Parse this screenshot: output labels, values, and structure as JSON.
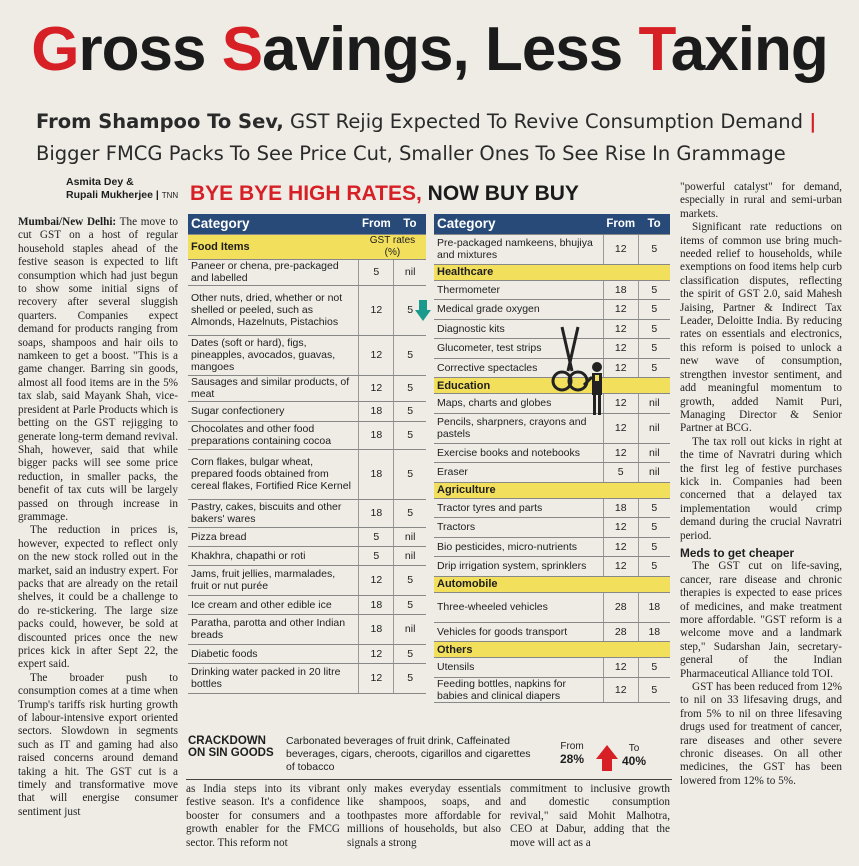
{
  "headline": {
    "part1": "G",
    "part2": "ross ",
    "part3": "S",
    "part4": "avings, Less ",
    "part5": "T",
    "part6": "axing"
  },
  "subdeck": {
    "line1_bold": "From Shampoo To Sev,",
    "line1_rest": " GST Rejig Expected To Revive Consumption Demand",
    "bar": "|",
    "line2": "Bigger FMCG Packs To See Price Cut, Smaller Ones To See Rise In Grammage"
  },
  "byline": {
    "authors1": "Asmita Dey &",
    "authors2": "Rupali Mukherjee",
    "agency": "TNN"
  },
  "left_column": {
    "dateline": "Mumbai/New Delhi:",
    "p1": " The move to cut GST on a host of regular household staples ahead of the festive season is expected to lift consumption which had just begun to show some initial signs of recovery after several sluggish quarters. Companies expect demand for products ranging from soaps, shampoos and hair oils to namkeen to get a boost. \"This is a game changer. Barring sin goods, almost all food items are in the 5% tax slab, said Mayank Shah, vice-president at Parle Products which is betting on the GST rejigging to generate long-term demand revival. Shah, however, said that while bigger packs will see some price reduction, in smaller packs, the benefit of tax cuts will be largely passed on through increase in grammage.",
    "p2": "The reduction in prices is, however, expected to reflect only on the new stock rolled out in the market, said an industry expert. For packs that are already on the retail shelves, it could be a challenge to do re-stickering. The large size packs could, however, be sold at discounted prices once the new prices kick in after Sept 22, the expert said.",
    "p3": "The broader push to consumption comes at a time when Trump's tariffs risk hurting growth of labour-intensive export oriented sectors. Slowdown in segments such as IT and gaming had also raised concerns around demand taking a hit. The GST cut is a timely and transformative move that will energise consumer sentiment just"
  },
  "bottom_strip": {
    "c1": "as India steps into its vibrant festive season. It's a confidence booster for consumers and a growth enabler for the FMCG sector. This reform not",
    "c2": "only makes everyday essentials like shampoos, soaps, and toothpastes more affordable for millions of households, but also signals a strong",
    "c3": "commitment to inclusive growth and domestic consumption revival,\" said Mohit Malhotra, CEO at Dabur, adding that the move will act as a"
  },
  "right_column": {
    "p1": "\"powerful catalyst\" for demand, especially in rural and semi-urban markets.",
    "p2": "Significant rate reductions on items of common use bring much-needed relief to households, while exemptions on food items help curb classification disputes, reflecting the spirit of GST 2.0, said Mahesh Jaising, Partner & Indirect Tax Leader, Deloitte India. By reducing rates on essentials and electronics, this reform is poised to unlock a new wave of consumption, strengthen investor sentiment, and add meaningful momentum to growth, added Namit Puri, Managing Director & Senior Partner at BCG.",
    "p3": "The tax roll out kicks in right at the time of Navratri during which the first leg of festive purchases kick in. Companies had been concerned that a delayed tax implementation would crimp demand during the crucial Navratri period.",
    "subhead": "Meds to get cheaper",
    "p4": "The GST cut on life-saving, cancer, rare disease and chronic therapies is expected to ease prices of medicines, and make treatment more affordable. \"GST reform is a welcome move and a landmark step,\" Sudarshan Jain, secretary-general of the Indian Pharmaceutical Alliance told TOI.",
    "p5": "GST has been reduced from 12% to nil on 33 lifesaving drugs, and from 5% to nil on three lifesaving drugs used for treatment of cancer, rare diseases and other severe chronic diseases. On all other medicines, the GST has been lowered from 12% to 5%."
  },
  "graphic": {
    "title_red": "BYE BYE HIGH RATES,",
    "title_black": " NOW BUY BUY",
    "headers": {
      "category": "Category",
      "from": "From",
      "to": "To"
    },
    "unit_note": "GST rates (%)",
    "left_table": {
      "section": "Food Items",
      "rows": [
        {
          "item": "Paneer or chena, pre-packaged and labelled",
          "from": "5",
          "to": "nil"
        },
        {
          "item": "Other nuts, dried, whether or not shelled or peeled, such as Almonds, Hazelnuts, Pistachios",
          "from": "12",
          "to": "5"
        },
        {
          "item": "Dates (soft or hard), figs, pineapples, avocados, guavas, mangoes",
          "from": "12",
          "to": "5"
        },
        {
          "item": "Sausages and similar products, of meat",
          "from": "12",
          "to": "5"
        },
        {
          "item": "Sugar confectionery",
          "from": "18",
          "to": "5"
        },
        {
          "item": "Chocolates and other food preparations containing cocoa",
          "from": "18",
          "to": "5"
        },
        {
          "item": "Corn flakes, bulgar wheat, prepared foods obtained from cereal flakes, Fortified Rice Kernel",
          "from": "18",
          "to": "5"
        },
        {
          "item": "Pastry, cakes, biscuits and other bakers' wares",
          "from": "18",
          "to": "5"
        },
        {
          "item": "Pizza bread",
          "from": "5",
          "to": "nil"
        },
        {
          "item": "Khakhra, chapathi or roti",
          "from": "5",
          "to": "nil"
        },
        {
          "item": "Jams, fruit jellies, marmalades, fruit or nut purée",
          "from": "12",
          "to": "5"
        },
        {
          "item": "Ice cream and other edible ice",
          "from": "18",
          "to": "5"
        },
        {
          "item": "Paratha, parotta and other Indian breads",
          "from": "18",
          "to": "nil"
        },
        {
          "item": "Diabetic foods",
          "from": "12",
          "to": "5"
        },
        {
          "item": "Drinking water packed in 20 litre bottles",
          "from": "12",
          "to": "5"
        }
      ]
    },
    "right_table": {
      "rows_top": [
        {
          "item": "Pre-packaged namkeens, bhujiya and mixtures",
          "from": "12",
          "to": "5"
        }
      ],
      "sections": [
        {
          "name": "Healthcare",
          "rows": [
            {
              "item": "Thermometer",
              "from": "18",
              "to": "5"
            },
            {
              "item": "Medical grade oxygen",
              "from": "12",
              "to": "5"
            },
            {
              "item": "Diagnostic kits",
              "from": "12",
              "to": "5"
            },
            {
              "item": "Glucometer, test strips",
              "from": "12",
              "to": "5"
            },
            {
              "item": "Corrective spectacles",
              "from": "12",
              "to": "5"
            }
          ]
        },
        {
          "name": "Education",
          "rows": [
            {
              "item": "Maps, charts and globes",
              "from": "12",
              "to": "nil"
            },
            {
              "item": "Pencils, sharpners, crayons and pastels",
              "from": "12",
              "to": "nil"
            },
            {
              "item": "Exercise books and notebooks",
              "from": "12",
              "to": "nil"
            },
            {
              "item": "Eraser",
              "from": "5",
              "to": "nil"
            }
          ]
        },
        {
          "name": "Agriculture",
          "rows": [
            {
              "item": "Tractor tyres and parts",
              "from": "18",
              "to": "5"
            },
            {
              "item": "Tractors",
              "from": "12",
              "to": "5"
            },
            {
              "item": "Bio pesticides, micro-nutrients",
              "from": "12",
              "to": "5"
            },
            {
              "item": "Drip irrigation system, sprinklers",
              "from": "12",
              "to": "5"
            }
          ]
        },
        {
          "name": "Automobile",
          "rows": [
            {
              "item": "Three-wheeled vehicles",
              "from": "28",
              "to": "18"
            },
            {
              "item": "Vehicles for goods transport",
              "from": "28",
              "to": "18"
            }
          ]
        },
        {
          "name": "Others",
          "rows": [
            {
              "item": "Utensils",
              "from": "12",
              "to": "5"
            },
            {
              "item": "Feeding bottles, napkins for babies and clinical diapers",
              "from": "12",
              "to": "5"
            }
          ]
        }
      ]
    },
    "crackdown": {
      "label": "CRACKDOWN ON SIN GOODS",
      "items": "Carbonated beverages of fruit drink, Caffeinated beverages, cigars, cheroots, cigarillos and cigarettes of tobacco",
      "from_label": "From",
      "from_value": "28%",
      "to_label": "To",
      "to_value": "40%"
    }
  },
  "colors": {
    "red": "#d71f26",
    "navy": "#274a78",
    "yellow": "#f2df5c",
    "green_arrow": "#1a9a8c"
  }
}
